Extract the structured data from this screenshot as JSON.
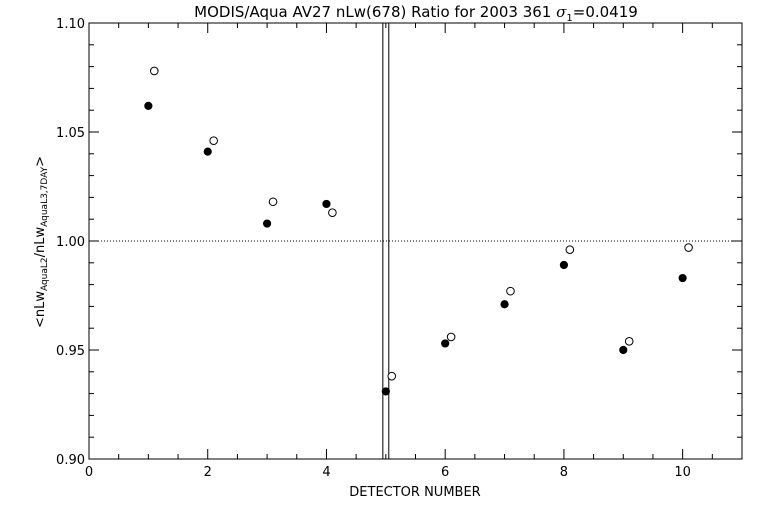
{
  "chart_data": {
    "type": "scatter",
    "title_main": "MODIS/Aqua AV27 nLw(678) Ratio for 2003 361 ",
    "title_sigma": "σ",
    "title_sigma_sub": "1",
    "title_value": "=0.0419",
    "xlabel": "DETECTOR NUMBER",
    "ylabel_parts": {
      "p1": "<nLw",
      "s1": "AquaL2",
      "p2": "/nLw",
      "s2": "AquaL3,7DAY",
      "p3": ">"
    },
    "xlim": [
      0,
      11
    ],
    "ylim": [
      0.9,
      1.1
    ],
    "x_ticks": [
      0,
      2,
      4,
      6,
      8,
      10
    ],
    "x_tick_labels": [
      "0",
      "2",
      "4",
      "6",
      "8",
      "10"
    ],
    "x_minor_step": 0.5,
    "y_ticks": [
      0.9,
      0.95,
      1.0,
      1.05,
      1.1
    ],
    "y_tick_labels": [
      "0.90",
      "0.95",
      "1.00",
      "1.05",
      "1.10"
    ],
    "y_minor_step": 0.01,
    "reference_line_y": 1.0,
    "vertical_lines_x": [
      4.95,
      5.05
    ],
    "series": [
      {
        "marker": "filled-circle",
        "x": [
          1,
          2,
          3,
          4,
          5,
          6,
          7,
          8,
          9,
          10
        ],
        "y": [
          1.062,
          1.041,
          1.008,
          1.017,
          0.931,
          0.953,
          0.971,
          0.989,
          0.95,
          0.983
        ]
      },
      {
        "marker": "open-circle",
        "x": [
          1.1,
          2.1,
          3.1,
          4.1,
          5.1,
          6.1,
          7.1,
          8.1,
          9.1,
          10.1
        ],
        "y": [
          1.078,
          1.046,
          1.018,
          1.013,
          0.938,
          0.956,
          0.977,
          0.996,
          0.954,
          0.997
        ]
      }
    ],
    "colors": {
      "ink": "#000000",
      "background": "#ffffff"
    }
  }
}
